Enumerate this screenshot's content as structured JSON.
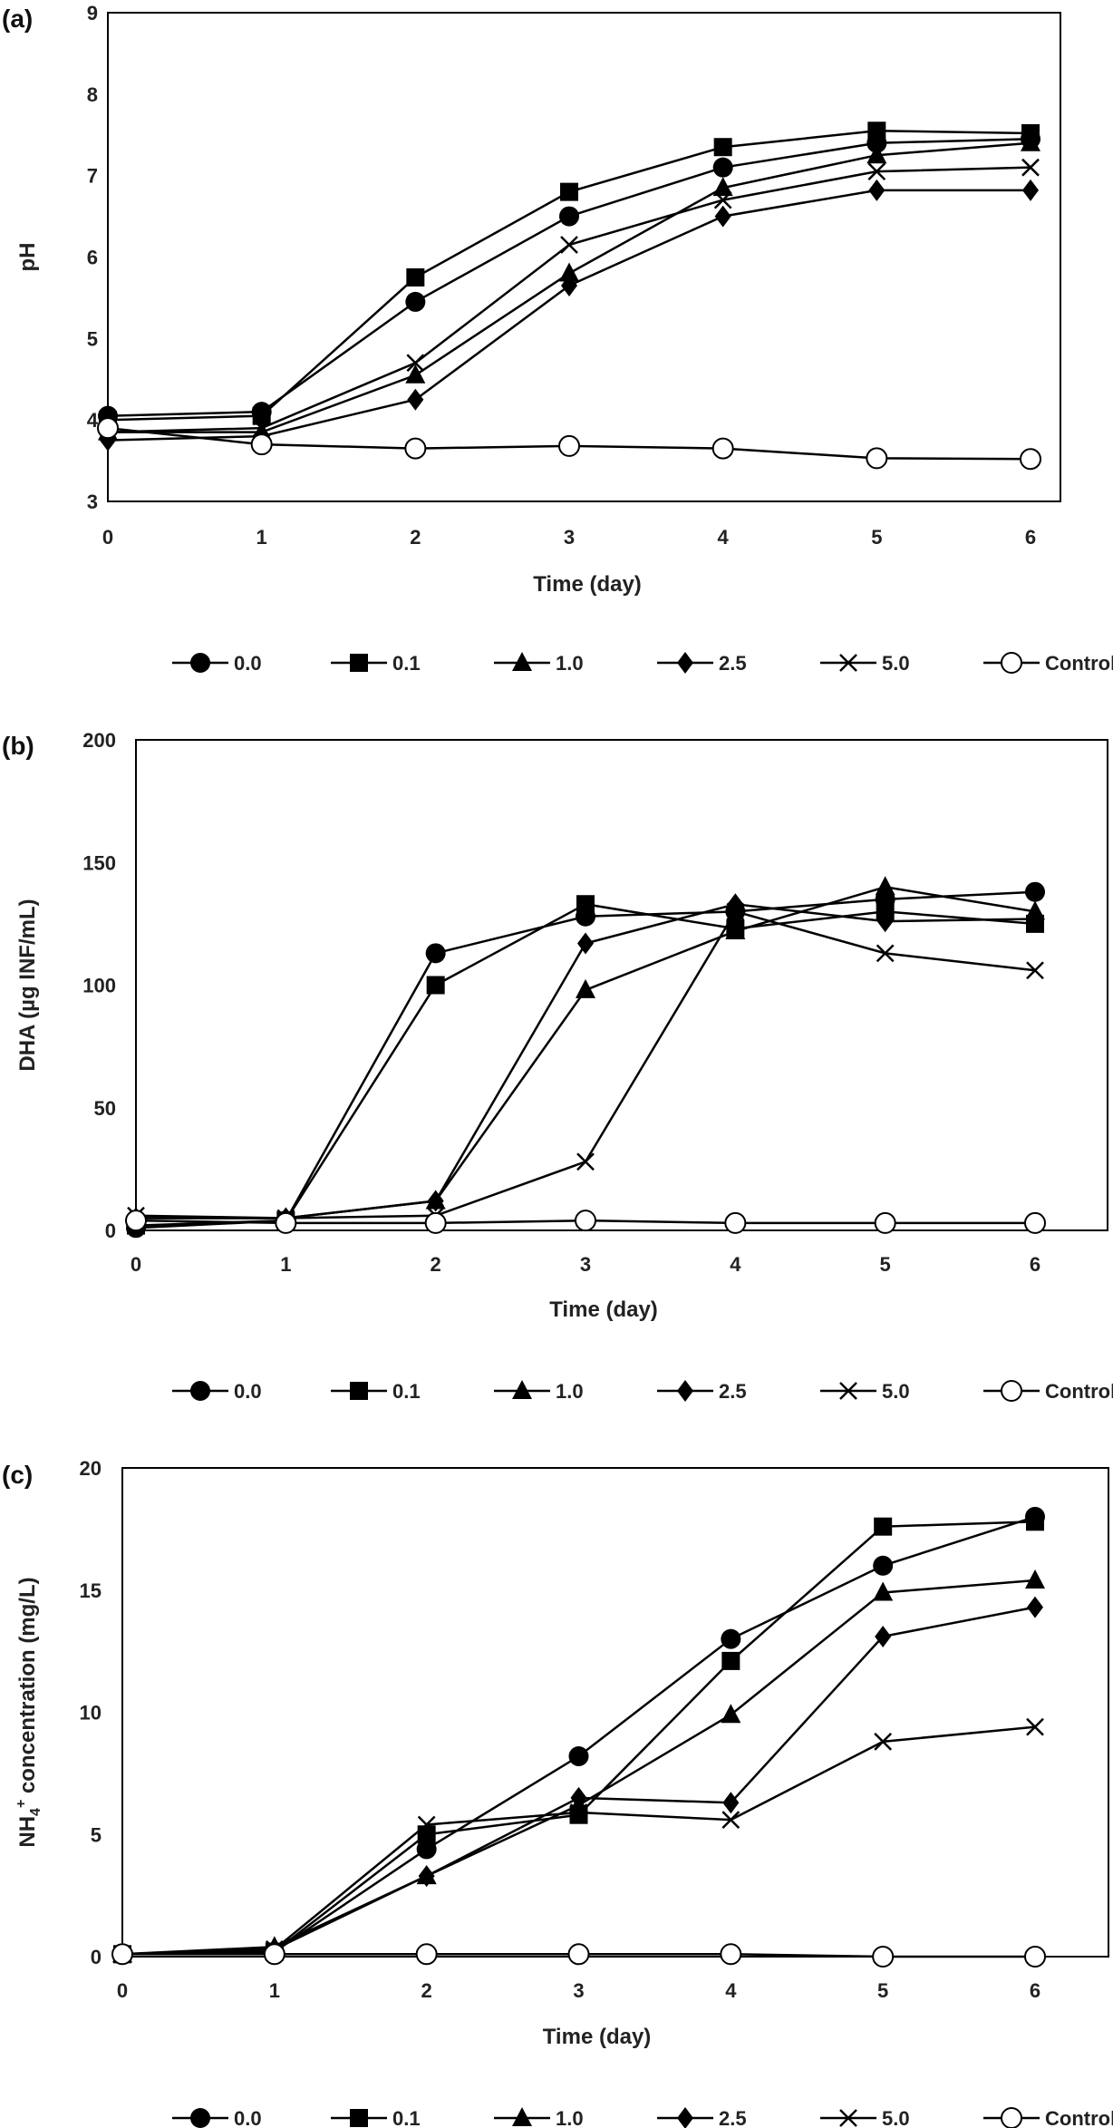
{
  "chart_data": [
    {
      "type": "line",
      "panel_label": "(a)",
      "title": "",
      "xlabel": "Time (day)",
      "ylabel": "pH",
      "ylabel_sub": "",
      "ylabel_sup": "",
      "xlim": [
        0,
        6
      ],
      "ylim": [
        3,
        9
      ],
      "xticks": [
        "0",
        "1",
        "2",
        "3",
        "4",
        "5",
        "6"
      ],
      "yticks": [
        "3",
        "4",
        "5",
        "6",
        "7",
        "8",
        "9"
      ],
      "grid": false,
      "legend_position": "bottom",
      "x": [
        0,
        1,
        2,
        3,
        4,
        5,
        6
      ],
      "series": [
        {
          "name": "0.0",
          "marker": "circle-filled",
          "values": [
            4.05,
            4.1,
            5.45,
            6.5,
            7.1,
            7.4,
            7.45
          ]
        },
        {
          "name": "0.1",
          "marker": "square-filled",
          "values": [
            4.0,
            4.05,
            5.75,
            6.8,
            7.35,
            7.55,
            7.52
          ]
        },
        {
          "name": "1.0",
          "marker": "triangle-filled",
          "values": [
            3.85,
            3.85,
            4.55,
            5.8,
            6.85,
            7.25,
            7.4
          ]
        },
        {
          "name": "2.5",
          "marker": "diamond-filled",
          "values": [
            3.75,
            3.8,
            4.25,
            5.65,
            6.5,
            6.82,
            6.82
          ]
        },
        {
          "name": "5.0",
          "marker": "cross",
          "values": [
            3.85,
            3.9,
            4.7,
            6.15,
            6.7,
            7.05,
            7.1
          ]
        },
        {
          "name": "Control",
          "marker": "circle-open",
          "values": [
            3.9,
            3.7,
            3.65,
            3.68,
            3.65,
            3.53,
            3.52
          ]
        }
      ]
    },
    {
      "type": "line",
      "panel_label": "(b)",
      "title": "",
      "xlabel": "Time (day)",
      "ylabel": "DHA (µg INF/mL)",
      "ylabel_sub": "",
      "ylabel_sup": "",
      "xlim": [
        0,
        6
      ],
      "ylim": [
        0,
        200
      ],
      "xticks": [
        "0",
        "1",
        "2",
        "3",
        "4",
        "5",
        "6"
      ],
      "yticks": [
        "0",
        "50",
        "100",
        "150",
        "200"
      ],
      "grid": false,
      "legend_position": "bottom",
      "x": [
        0,
        1,
        2,
        3,
        4,
        5,
        6
      ],
      "series": [
        {
          "name": "0.0",
          "marker": "circle-filled",
          "values": [
            1,
            4,
            113,
            128,
            130,
            135,
            138
          ]
        },
        {
          "name": "0.1",
          "marker": "square-filled",
          "values": [
            2,
            4,
            100,
            133,
            123,
            130,
            125
          ]
        },
        {
          "name": "1.0",
          "marker": "triangle-filled",
          "values": [
            5,
            5,
            12,
            98,
            122,
            140,
            130
          ]
        },
        {
          "name": "2.5",
          "marker": "diamond-filled",
          "values": [
            5,
            5,
            12,
            117,
            133,
            126,
            127
          ]
        },
        {
          "name": "5.0",
          "marker": "cross",
          "values": [
            6,
            5,
            6,
            28,
            130,
            113,
            106
          ]
        },
        {
          "name": "Control",
          "marker": "circle-open",
          "values": [
            4,
            3,
            3,
            4,
            3,
            3,
            3
          ]
        }
      ]
    },
    {
      "type": "line",
      "panel_label": "(c)",
      "title": "",
      "xlabel": "Time (day)",
      "ylabel": "NH",
      "ylabel_sub": "4",
      "ylabel_sup": "+",
      "ylabel_rest": " concentration (mg/L)",
      "xlim": [
        0,
        6
      ],
      "ylim": [
        0,
        20
      ],
      "xticks": [
        "0",
        "1",
        "2",
        "3",
        "4",
        "5",
        "6"
      ],
      "yticks": [
        "0",
        "5",
        "10",
        "15",
        "20"
      ],
      "grid": false,
      "legend_position": "bottom",
      "x": [
        0,
        1,
        2,
        3,
        4,
        5,
        6
      ],
      "series": [
        {
          "name": "0.0",
          "marker": "circle-filled",
          "values": [
            0.1,
            0.2,
            4.4,
            8.2,
            13.0,
            16.0,
            18.0
          ]
        },
        {
          "name": "0.1",
          "marker": "square-filled",
          "values": [
            0.1,
            0.2,
            5.0,
            5.8,
            12.1,
            17.6,
            17.8
          ]
        },
        {
          "name": "1.0",
          "marker": "triangle-filled",
          "values": [
            0.1,
            0.4,
            3.3,
            6.2,
            9.9,
            14.9,
            15.4
          ]
        },
        {
          "name": "2.5",
          "marker": "diamond-filled",
          "values": [
            0.1,
            0.3,
            3.3,
            6.5,
            6.3,
            13.1,
            14.3
          ]
        },
        {
          "name": "5.0",
          "marker": "cross",
          "values": [
            0.1,
            0.3,
            5.4,
            5.9,
            5.6,
            8.8,
            9.4
          ]
        },
        {
          "name": "Control",
          "marker": "circle-open",
          "values": [
            0.1,
            0.1,
            0.1,
            0.1,
            0.1,
            0.0,
            0.0
          ]
        }
      ]
    }
  ]
}
